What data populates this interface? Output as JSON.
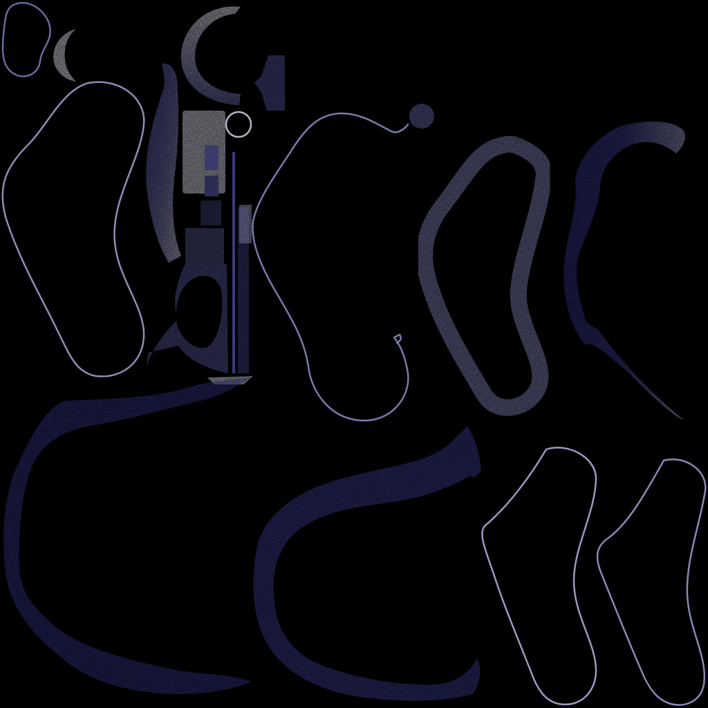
{
  "texture_atlas": {
    "background_color": "#000000",
    "colors": {
      "outline_light": "#c8c8d8",
      "outline_blue": "#5a5aa0",
      "band_navy": "#2c2c78",
      "band_indigo": "#3f3f8c",
      "band_grey": "#8c8cb0",
      "fill_light": "#d8d8e4",
      "dark_grey": "#4a4a62"
    },
    "fragment_count": 20
  }
}
